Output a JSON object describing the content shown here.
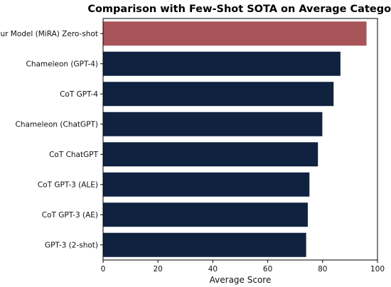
{
  "chart_data": {
    "type": "bar",
    "orientation": "horizontal",
    "title": "Comparison with Few-Shot SOTA on Average Category",
    "xlabel": "Average Score",
    "ylabel": "",
    "xlim": [
      0,
      100
    ],
    "xticks": [
      "0",
      "20",
      "40",
      "60",
      "80",
      "100"
    ],
    "grid": false,
    "categories": [
      "Our Model (MiRA) Zero-shot",
      "Chameleon (GPT-4)",
      "CoT GPT-4",
      "Chameleon (ChatGPT)",
      "CoT ChatGPT",
      "CoT GPT-3 (ALE)",
      "CoT GPT-3 (AE)",
      "GPT-3 (2-shot)"
    ],
    "values": [
      96.0,
      86.5,
      84.0,
      79.9,
      78.3,
      75.2,
      74.6,
      74.0
    ],
    "colors": [
      "#a85458",
      "#0f2240",
      "#0f2240",
      "#0f2240",
      "#0f2240",
      "#0f2240",
      "#0f2240",
      "#0f2240"
    ]
  }
}
